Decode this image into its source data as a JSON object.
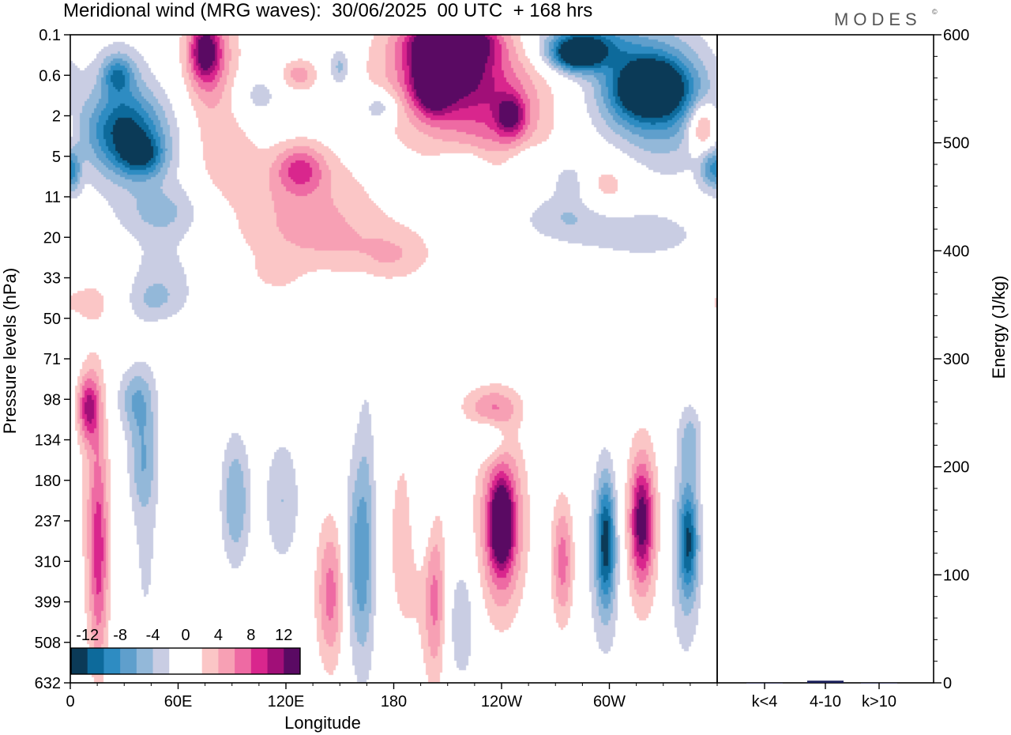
{
  "header": {
    "title": "Meridional wind (MRG waves):  30/06/2025  00 UTC  + 168 hrs",
    "logo": "MODES",
    "logo_mark": "©"
  },
  "chart_data": [
    {
      "type": "heatmap",
      "title": "Meridional wind (MRG waves):  30/06/2025  00 UTC  + 168 hrs",
      "xlabel": "Longitude",
      "ylabel": "Pressure levels (hPa)",
      "x_ticks": [
        "0",
        "60E",
        "120E",
        "180",
        "120W",
        "60W"
      ],
      "x_tick_positions_deg": [
        0,
        60,
        120,
        180,
        240,
        300
      ],
      "xlim_deg": [
        0,
        360
      ],
      "y_ticks": [
        "0.1",
        "0.6",
        "2",
        "5",
        "11",
        "20",
        "33",
        "50",
        "71",
        "98",
        "134",
        "180",
        "237",
        "310",
        "399",
        "508",
        "632"
      ],
      "y_scale": "pressure levels (evenly spaced index)",
      "grid": false,
      "colorbar": {
        "labels": [
          "-12",
          "-8",
          "-4",
          "0",
          "4",
          "8",
          "12"
        ],
        "colors": [
          "#0b3a57",
          "#0d6a9b",
          "#2e8cc2",
          "#5f9fcc",
          "#93b8d9",
          "#c9cde3",
          "#ffffff",
          "#ffffff",
          "#fbc6c6",
          "#f7a0b4",
          "#ee6aa3",
          "#d9268d",
          "#a10f78",
          "#5a0a63"
        ],
        "placement": "bottom-left"
      },
      "blobs": [
        {
          "lon": 26,
          "lev": 1.0,
          "rlon": 8,
          "rlev": 0.45,
          "v": -6
        },
        {
          "lon": 28,
          "lev": 1.0,
          "rlon": 14,
          "rlev": 0.9,
          "v": -3
        },
        {
          "lon": 30,
          "lev": 2.4,
          "rlon": 20,
          "rlev": 0.9,
          "v": -9
        },
        {
          "lon": 34,
          "lev": 2.6,
          "rlon": 30,
          "rlev": 1.6,
          "v": -4
        },
        {
          "lon": 40,
          "lev": 3.0,
          "rlon": 12,
          "rlev": 0.5,
          "v": -7
        },
        {
          "lon": 2,
          "lev": 3.4,
          "rlon": 4,
          "rlev": 0.5,
          "v": -5
        },
        {
          "lon": 52,
          "lev": 4.4,
          "rlon": 22,
          "rlev": 0.7,
          "v": -4
        },
        {
          "lon": 52,
          "lev": 6.0,
          "rlon": 18,
          "rlev": 0.9,
          "v": -3
        },
        {
          "lon": 75,
          "lev": 0.4,
          "rlon": 8,
          "rlev": 0.7,
          "v": 10
        },
        {
          "lon": 78,
          "lev": 0.7,
          "rlon": 16,
          "rlev": 1.6,
          "v": 6
        },
        {
          "lon": 87,
          "lev": 3.0,
          "rlon": 18,
          "rlev": 1.0,
          "v": 3
        },
        {
          "lon": 128,
          "lev": 3.3,
          "rlon": 14,
          "rlev": 0.6,
          "v": 7
        },
        {
          "lon": 130,
          "lev": 4.2,
          "rlon": 40,
          "rlev": 1.2,
          "v": 4
        },
        {
          "lon": 150,
          "lev": 5.2,
          "rlon": 50,
          "rlev": 0.8,
          "v": 2.5
        },
        {
          "lon": 104,
          "lev": 1.5,
          "rlon": 14,
          "rlev": 0.6,
          "v": -3
        },
        {
          "lon": 127,
          "lev": 1.0,
          "rlon": 10,
          "rlev": 0.4,
          "v": 5
        },
        {
          "lon": 150,
          "lev": 0.8,
          "rlon": 6,
          "rlev": 0.5,
          "v": -5
        },
        {
          "lon": 172,
          "lev": 1.8,
          "rlon": 10,
          "rlev": 0.4,
          "v": -5
        },
        {
          "lon": 202,
          "lev": 1.2,
          "rlon": 10,
          "rlev": 0.7,
          "v": 11
        },
        {
          "lon": 210,
          "lev": 0.6,
          "rlon": 24,
          "rlev": 1.0,
          "v": 10
        },
        {
          "lon": 210,
          "lev": 1.0,
          "rlon": 40,
          "rlev": 1.8,
          "v": 6
        },
        {
          "lon": 240,
          "lev": 2.0,
          "rlon": 30,
          "rlev": 1.5,
          "v": 5
        },
        {
          "lon": 245,
          "lev": 2.0,
          "rlon": 8,
          "rlev": 0.5,
          "v": 8
        },
        {
          "lon": 213,
          "lev": 0.2,
          "rlon": 20,
          "rlev": 0.4,
          "v": 12
        },
        {
          "lon": 287,
          "lev": 0.2,
          "rlon": 26,
          "rlev": 0.6,
          "v": -9
        },
        {
          "lon": 282,
          "lev": 0.5,
          "rlon": 14,
          "rlev": 0.4,
          "v": -12
        },
        {
          "lon": 322,
          "lev": 1.3,
          "rlon": 20,
          "rlev": 0.7,
          "v": -13
        },
        {
          "lon": 320,
          "lev": 1.5,
          "rlon": 30,
          "rlev": 1.4,
          "v": -7
        },
        {
          "lon": 335,
          "lev": 1.5,
          "rlon": 24,
          "rlev": 2.0,
          "v": -3
        },
        {
          "lon": 352,
          "lev": 2.3,
          "rlon": 8,
          "rlev": 0.6,
          "v": 8
        },
        {
          "lon": 356,
          "lev": 3.3,
          "rlon": 6,
          "rlev": 0.5,
          "v": -6
        },
        {
          "lon": 280,
          "lev": 3.6,
          "rlon": 12,
          "rlev": 0.6,
          "v": -4
        },
        {
          "lon": 296,
          "lev": 3.8,
          "rlon": 18,
          "rlev": 0.8,
          "v": 4
        },
        {
          "lon": 280,
          "lev": 4.5,
          "rlon": 30,
          "rlev": 0.6,
          "v": -4
        },
        {
          "lon": 220,
          "lev": 3.4,
          "rlon": 14,
          "rlev": 0.6,
          "v": -4
        },
        {
          "lon": 255,
          "lev": 3.2,
          "rlon": 14,
          "rlev": 0.5,
          "v": -3
        },
        {
          "lon": 320,
          "lev": 5.0,
          "rlon": 40,
          "rlev": 0.7,
          "v": -2.5
        },
        {
          "lon": 180,
          "lev": 5.5,
          "rlon": 20,
          "rlev": 0.6,
          "v": 2.5
        },
        {
          "lon": 45,
          "lev": 6.6,
          "rlon": 18,
          "rlev": 0.5,
          "v": -2.5
        },
        {
          "lon": 8,
          "lev": 6.6,
          "rlon": 20,
          "rlev": 0.5,
          "v": 2.5
        },
        {
          "lon": 115,
          "lev": 5.9,
          "rlon": 12,
          "rlev": 0.4,
          "v": 2.5
        },
        {
          "lon": 10,
          "lev": 9.2,
          "rlon": 6,
          "rlev": 0.8,
          "v": 9
        },
        {
          "lon": 14,
          "lev": 11.5,
          "rlon": 8,
          "rlev": 3.8,
          "v": 4
        },
        {
          "lon": 16,
          "lev": 13.0,
          "rlon": 5,
          "rlev": 2.5,
          "v": 6
        },
        {
          "lon": 36,
          "lev": 9.0,
          "rlon": 10,
          "rlev": 0.8,
          "v": -5
        },
        {
          "lon": 40,
          "lev": 10.5,
          "rlon": 8,
          "rlev": 1.2,
          "v": -4
        },
        {
          "lon": 42,
          "lev": 12.0,
          "rlon": 8,
          "rlev": 4.0,
          "v": -2.5
        },
        {
          "lon": 92,
          "lev": 11.5,
          "rlon": 8,
          "rlev": 1.6,
          "v": -6
        },
        {
          "lon": 118,
          "lev": 11.5,
          "rlon": 10,
          "rlev": 1.6,
          "v": -4
        },
        {
          "lon": 145,
          "lev": 13.8,
          "rlon": 8,
          "rlev": 1.8,
          "v": 7
        },
        {
          "lon": 160,
          "lev": 13.0,
          "rlon": 8,
          "rlev": 2.5,
          "v": -6
        },
        {
          "lon": 165,
          "lev": 12.0,
          "rlon": 6,
          "rlev": 4.0,
          "v": -3
        },
        {
          "lon": 188,
          "lev": 12.5,
          "rlon": 14,
          "rlev": 3.0,
          "v": 3
        },
        {
          "lon": 196,
          "lev": 11.5,
          "rlon": 6,
          "rlev": 1.5,
          "v": -4
        },
        {
          "lon": 203,
          "lev": 14.0,
          "rlon": 6,
          "rlev": 2.0,
          "v": 6
        },
        {
          "lon": 240,
          "lev": 12.1,
          "rlon": 5,
          "rlev": 0.8,
          "v": 13
        },
        {
          "lon": 240,
          "lev": 12.1,
          "rlon": 10,
          "rlev": 1.8,
          "v": 8
        },
        {
          "lon": 240,
          "lev": 12.0,
          "rlon": 16,
          "rlev": 2.5,
          "v": 3.5
        },
        {
          "lon": 218,
          "lev": 14.5,
          "rlon": 8,
          "rlev": 1.5,
          "v": -4
        },
        {
          "lon": 234,
          "lev": 9.2,
          "rlon": 16,
          "rlev": 0.5,
          "v": 5
        },
        {
          "lon": 233,
          "lev": 10.0,
          "rlon": 10,
          "rlev": 0.5,
          "v": -4
        },
        {
          "lon": 274,
          "lev": 13.0,
          "rlon": 6,
          "rlev": 1.5,
          "v": 7
        },
        {
          "lon": 298,
          "lev": 12.5,
          "rlon": 5,
          "rlev": 1.5,
          "v": -10
        },
        {
          "lon": 298,
          "lev": 13.0,
          "rlon": 10,
          "rlev": 2.5,
          "v": -4
        },
        {
          "lon": 318,
          "lev": 12.0,
          "rlon": 6,
          "rlev": 1.4,
          "v": 10
        },
        {
          "lon": 318,
          "lev": 12.2,
          "rlon": 12,
          "rlev": 2.4,
          "v": 4
        },
        {
          "lon": 344,
          "lev": 12.5,
          "rlon": 5,
          "rlev": 1.3,
          "v": -9
        },
        {
          "lon": 342,
          "lev": 12.8,
          "rlon": 10,
          "rlev": 2.8,
          "v": -4
        },
        {
          "lon": 345,
          "lev": 10.0,
          "rlon": 6,
          "rlev": 0.8,
          "v": -4
        }
      ]
    },
    {
      "type": "bar",
      "categories": [
        "k<4",
        "4-10",
        "k>10"
      ],
      "values": [
        0,
        2,
        0
      ],
      "ylabel": "Energy (J/kg)",
      "ylim": [
        0,
        600
      ],
      "y_ticks": [
        "0",
        "100",
        "200",
        "300",
        "400",
        "500",
        "600"
      ],
      "y_axis_side": "right",
      "bar_color": "#1a1f5a"
    }
  ]
}
